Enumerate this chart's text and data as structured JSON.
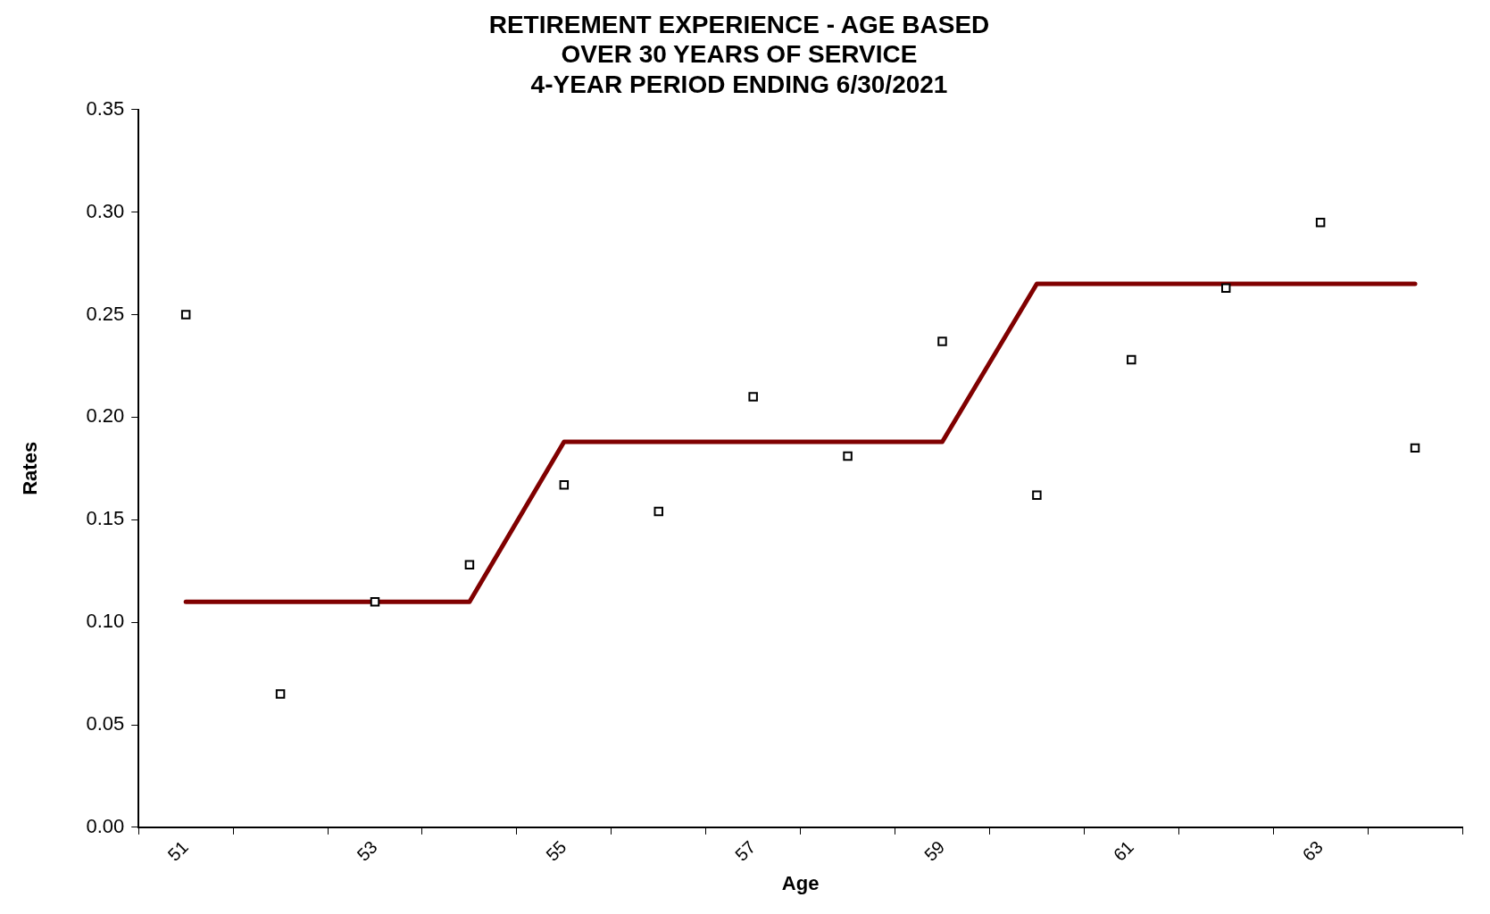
{
  "chart_data": {
    "type": "scatter",
    "title": [
      "RETIREMENT EXPERIENCE - AGE BASED",
      "OVER 30 YEARS OF SERVICE",
      "4-YEAR PERIOD ENDING 6/30/2021"
    ],
    "xlabel": "Age",
    "ylabel": "Rates",
    "categories": [
      "51",
      null,
      "53",
      null,
      "55",
      null,
      "57",
      null,
      "59",
      null,
      "61",
      null,
      "63",
      null
    ],
    "series": [
      {
        "color": "#000000",
        "marker": "square",
        "values": [
          0.25,
          0.065,
          0.11,
          0.128,
          0.167,
          0.154,
          0.21,
          0.181,
          0.237,
          0.162,
          0.228,
          0.263,
          0.295,
          0.185
        ]
      },
      {
        "type": "line",
        "color": "#800000",
        "marker": "none",
        "values": [
          0.11,
          0.11,
          0.11,
          0.11,
          0.188,
          0.188,
          0.188,
          0.188,
          0.188,
          0.265,
          0.265,
          0.265,
          0.265,
          0.265
        ]
      }
    ],
    "ylim": [
      0,
      0.35
    ],
    "yticks": [
      {
        "value": 0,
        "label": "0.00"
      },
      {
        "value": 0.05,
        "label": "0.05"
      },
      {
        "value": 0.1,
        "label": "0.10"
      },
      {
        "value": 0.15,
        "label": "0.15"
      },
      {
        "value": 0.2,
        "label": "0.20"
      },
      {
        "value": 0.25,
        "label": "0.25"
      },
      {
        "value": 0.3,
        "label": "0.30"
      },
      {
        "value": 0.35,
        "label": "0.35"
      }
    ],
    "grid": false,
    "legend": false
  }
}
